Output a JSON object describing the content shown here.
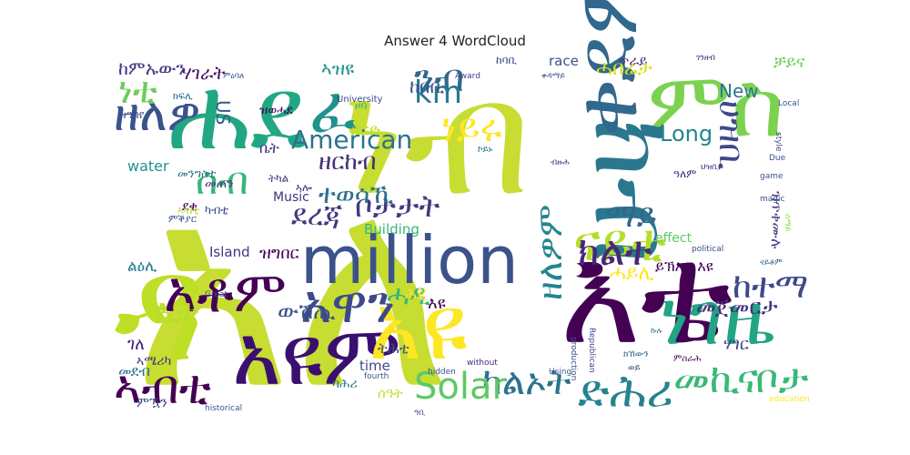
{
  "chart_data": {
    "type": "wordcloud",
    "title": "Answer 4 WordCloud",
    "colormap": "viridis",
    "words": [
      {
        "text": "አለ",
        "weight": 100,
        "color": "#c7dd32"
      },
      {
        "text": "ነብ",
        "weight": 96,
        "color": "#c7dd32"
      },
      {
        "text": "እቴ",
        "weight": 88,
        "color": "#440154"
      },
      {
        "text": "ሐደ",
        "weight": 78,
        "color": "#22a784"
      },
      {
        "text": "ምስ",
        "weight": 72,
        "color": "#7cd250"
      },
      {
        "text": "አዩም",
        "weight": 66,
        "color": "#3b0f70"
      },
      {
        "text": "ዳ",
        "weight": 62,
        "color": "#bddf26"
      },
      {
        "text": "አዩ",
        "weight": 58,
        "color": "#fde725"
      },
      {
        "text": "ክብ",
        "weight": 56,
        "color": "#2a788e"
      },
      {
        "text": "million",
        "weight": 54,
        "color": "#3b528b"
      },
      {
        "text": "ቀደም",
        "weight": 50,
        "color": "#31688e"
      },
      {
        "text": "ፈ",
        "weight": 48,
        "color": "#21918c"
      },
      {
        "text": "ነገዜ",
        "weight": 46,
        "color": "#21a585"
      },
      {
        "text": "አቶም",
        "weight": 44,
        "color": "#440154"
      },
      {
        "text": "አዋን",
        "weight": 42,
        "color": "#3e4989"
      },
      {
        "text": "ዘለዎ",
        "weight": 40,
        "color": "#3b528b"
      },
      {
        "text": "ሰብ",
        "weight": 38,
        "color": "#35b779"
      },
      {
        "text": "ናይቲ",
        "weight": 37,
        "color": "#b5de2b"
      },
      {
        "text": "ንብ",
        "weight": 36,
        "color": "#31688e"
      },
      {
        "text": "ኣብቲ",
        "weight": 35,
        "color": "#440154"
      },
      {
        "text": "ድሕሪ",
        "weight": 34,
        "color": "#26828e"
      },
      {
        "text": "መኪናቦታ",
        "weight": 33,
        "color": "#38b977"
      },
      {
        "text": "ካልኦት",
        "weight": 32,
        "color": "#2c728e"
      },
      {
        "text": "ክልተ",
        "weight": 31,
        "color": "#482878"
      },
      {
        "text": "ከተማ",
        "weight": 30,
        "color": "#3e4989"
      },
      {
        "text": "Solar",
        "weight": 29,
        "color": "#5ec962"
      },
      {
        "text": "ነይሩ",
        "weight": 28,
        "color": "#fde725"
      },
      {
        "text": "ዘለዎም",
        "weight": 27,
        "color": "#24868e"
      },
      {
        "text": "ሀዝቢ",
        "weight": 26,
        "color": "#3e4989"
      },
      {
        "text": "ማይ",
        "weight": 25,
        "color": "#31688e"
      },
      {
        "text": "ደረጃ",
        "weight": 24,
        "color": "#453882"
      },
      {
        "text": "ቦታታት",
        "weight": 24,
        "color": "#443983"
      },
      {
        "text": "ነቲ",
        "weight": 23,
        "color": "#6ccd5a"
      },
      {
        "text": "km",
        "weight": 23,
        "color": "#2a788e"
      },
      {
        "text": "American",
        "weight": 22,
        "color": "#2c728e"
      },
      {
        "text": "እታ",
        "weight": 22,
        "color": "#b8de29"
      },
      {
        "text": "ሓዲ",
        "weight": 21,
        "color": "#35b779"
      },
      {
        "text": "ዘርከብ",
        "weight": 20,
        "color": "#46327e"
      },
      {
        "text": "መጀመርታ",
        "weight": 19,
        "color": "#472d7b"
      },
      {
        "text": "ተወሳኺ",
        "weight": 19,
        "color": "#2d708e"
      },
      {
        "text": "ውሽጢ",
        "weight": 17,
        "color": "#3b528b"
      },
      {
        "text": "Long",
        "weight": 16,
        "color": "#25858e"
      },
      {
        "text": "ሃገራት",
        "weight": 15,
        "color": "#481668"
      },
      {
        "text": "ከምኡውን",
        "weight": 15,
        "color": "#453882"
      },
      {
        "text": "ቦርድ",
        "weight": 15,
        "color": "#bddf26"
      },
      {
        "text": "race",
        "weight": 13,
        "color": "#3b528b"
      },
      {
        "text": "ጥራይ",
        "weight": 13,
        "color": "#472d7b"
      },
      {
        "text": "ሓበሬታ",
        "weight": 15,
        "color": "#d8e219"
      },
      {
        "text": "New",
        "weight": 15,
        "color": "#2a788e"
      },
      {
        "text": "ኣዝዩ",
        "weight": 14,
        "color": "#21918c"
      },
      {
        "text": "ከበቢ",
        "weight": 15,
        "color": "#3b528b"
      },
      {
        "text": "US",
        "weight": 14,
        "color": "#365c8d"
      },
      {
        "text": "ቤት",
        "weight": 14,
        "color": "#46327e"
      },
      {
        "text": "መጠን",
        "weight": 12,
        "color": "#46327e"
      },
      {
        "text": "water",
        "weight": 12,
        "color": "#21918c"
      },
      {
        "text": "Music",
        "weight": 11,
        "color": "#46327e"
      },
      {
        "text": "Island",
        "weight": 12,
        "color": "#46327e"
      },
      {
        "text": "ዝግበር",
        "weight": 14,
        "color": "#440154"
      },
      {
        "text": "ልዕሊ",
        "weight": 14,
        "color": "#287c8e"
      },
      {
        "text": "Building",
        "weight": 11,
        "color": "#35b779"
      },
      {
        "text": "time",
        "weight": 12,
        "color": "#3e4989"
      },
      {
        "text": "ትሕቲ",
        "weight": 13,
        "color": "#3b528b"
      },
      {
        "text": "ሰዓት",
        "weight": 12,
        "color": "#c2df23"
      },
      {
        "text": "ባሕሪ",
        "weight": 12,
        "color": "#2a788e"
      },
      {
        "text": "ይኽእል እዩ",
        "weight": 12,
        "color": "#440154"
      },
      {
        "text": "effect",
        "weight": 11,
        "color": "#5ec962"
      },
      {
        "text": "ሃገር",
        "weight": 12,
        "color": "#404688"
      },
      {
        "text": "ዝጥቀሙሉ",
        "weight": 11,
        "color": "#414487"
      },
      {
        "text": "ቻይና",
        "weight": 13,
        "color": "#6ccd5a"
      },
      {
        "text": "ገለ",
        "weight": 12,
        "color": "#482878"
      },
      {
        "text": "መደብ",
        "weight": 11,
        "color": "#2c728e"
      },
      {
        "text": "ምዃን",
        "weight": 11,
        "color": "#3e4989"
      },
      {
        "text": "ኣሜሪካ",
        "weight": 10,
        "color": "#46327e"
      },
      {
        "text": "ደቂ",
        "weight": 10,
        "color": "#440154"
      },
      {
        "text": "ካብቲ",
        "weight": 10,
        "color": "#3b528b"
      },
      {
        "text": "መንግስቲ",
        "weight": 10,
        "color": "#2c728e"
      },
      {
        "text": "ትካል",
        "weight": 10,
        "color": "#46327e"
      },
      {
        "text": "ዝወሓደ",
        "weight": 10,
        "color": "#440154"
      },
      {
        "text": "ዝዓበየ",
        "weight": 9,
        "color": "#3e4989"
      },
      {
        "text": "ከባቢ",
        "weight": 9,
        "color": "#3e4989"
      },
      {
        "text": "ዓለም",
        "weight": 9,
        "color": "#482878"
      },
      {
        "text": "ኣብቲ",
        "weight": 9,
        "color": "#b5de2b"
      },
      {
        "text": "ኣሎ",
        "weight": 10,
        "color": "#482878"
      },
      {
        "text": "ዞባ",
        "weight": 10,
        "color": "#35b779"
      },
      {
        "text": "ምቕያር",
        "weight": 9,
        "color": "#3b528b"
      },
      {
        "text": "ክፍሊ",
        "weight": 9,
        "color": "#31688e"
      },
      {
        "text": "ኮይኑ",
        "weight": 9,
        "color": "#2c728e"
      },
      {
        "text": "University",
        "weight": 8,
        "color": "#3e4989"
      },
      {
        "text": "Award",
        "weight": 7,
        "color": "#404688"
      },
      {
        "text": "Republican",
        "weight": 7,
        "color": "#3e4989"
      },
      {
        "text": "production",
        "weight": 7,
        "color": "#3e4989"
      },
      {
        "text": "political",
        "weight": 7,
        "color": "#3e4989"
      },
      {
        "text": "Using",
        "weight": 7,
        "color": "#3b528b"
      },
      {
        "text": "fourth",
        "weight": 7,
        "color": "#3b528b"
      },
      {
        "text": "hidden",
        "weight": 7,
        "color": "#3b528b"
      },
      {
        "text": "without",
        "weight": 7,
        "color": "#482878"
      },
      {
        "text": "historical",
        "weight": 7,
        "color": "#3b528b"
      },
      {
        "text": "education",
        "weight": 7,
        "color": "#fde725"
      },
      {
        "text": "game",
        "weight": 7,
        "color": "#3b528b"
      },
      {
        "text": "magic",
        "weight": 7,
        "color": "#3b528b"
      },
      {
        "text": "Local",
        "weight": 7,
        "color": "#3b528b"
      },
      {
        "text": "style",
        "weight": 7,
        "color": "#3b528b"
      },
      {
        "text": "Due",
        "weight": 7,
        "color": "#3b528b"
      },
      {
        "text": "Great",
        "weight": 7,
        "color": "#3b528b"
      },
      {
        "text": "ሰማይ",
        "weight": 7,
        "color": "#8fd744"
      },
      {
        "text": "ገንዘብ",
        "weight": 7,
        "color": "#482878"
      },
      {
        "text": "ምዕባለ",
        "weight": 7,
        "color": "#3b528b"
      },
      {
        "text": "ናይቶም",
        "weight": 7,
        "color": "#31688e"
      },
      {
        "text": "ኩሉ",
        "weight": 7,
        "color": "#2c728e"
      },
      {
        "text": "ህዝቢ",
        "weight": 7,
        "color": "#46327e"
      },
      {
        "text": "ሓይሊ",
        "weight": 9,
        "color": "#fde725"
      },
      {
        "text": "ሕጂ",
        "weight": 9,
        "color": "#fde725"
      },
      {
        "text": "እዩ",
        "weight": 9,
        "color": "#440154"
      },
      {
        "text": "ዓቢ",
        "weight": 7,
        "color": "#3b528b"
      },
      {
        "text": "ቀዳማይ",
        "weight": 7,
        "color": "#3b528b"
      },
      {
        "text": "ብዙሕ",
        "weight": 7,
        "color": "#46327e"
      },
      {
        "text": "ወይ",
        "weight": 8,
        "color": "#3b528b"
      },
      {
        "text": "ክኸውን",
        "weight": 8,
        "color": "#31688e"
      },
      {
        "text": "ምስራሕ",
        "weight": 8,
        "color": "#440154"
      },
      {
        "text": "ዘሎ",
        "weight": 7,
        "color": "#440154"
      }
    ]
  }
}
